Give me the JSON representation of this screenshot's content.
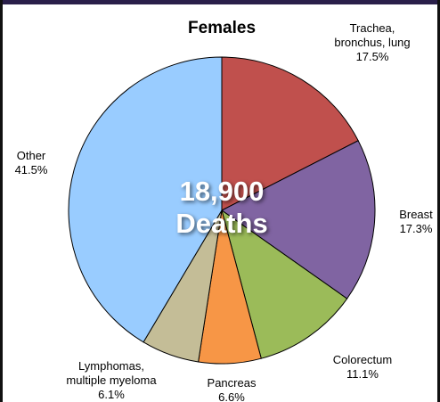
{
  "chart_data": {
    "type": "pie",
    "title": "Females",
    "categories": [
      [
        "Trachea,",
        "bronchus, lung"
      ],
      [
        "Breast"
      ],
      [
        "Colorectum"
      ],
      [
        "Pancreas"
      ],
      [
        "Lymphomas,",
        "multiple myeloma"
      ],
      [
        "Other"
      ]
    ],
    "values": [
      17.5,
      17.3,
      11.1,
      6.6,
      6.1,
      41.5
    ],
    "value_labels": [
      "17.5%",
      "17.3%",
      "11.1%",
      "6.6%",
      "6.1%",
      "41.5%"
    ],
    "colors": [
      "#c0504d",
      "#8064a2",
      "#9bbb59",
      "#f79646",
      "#c4bd97",
      "#99ccff"
    ],
    "center_label": [
      "18,900",
      "Deaths"
    ]
  }
}
